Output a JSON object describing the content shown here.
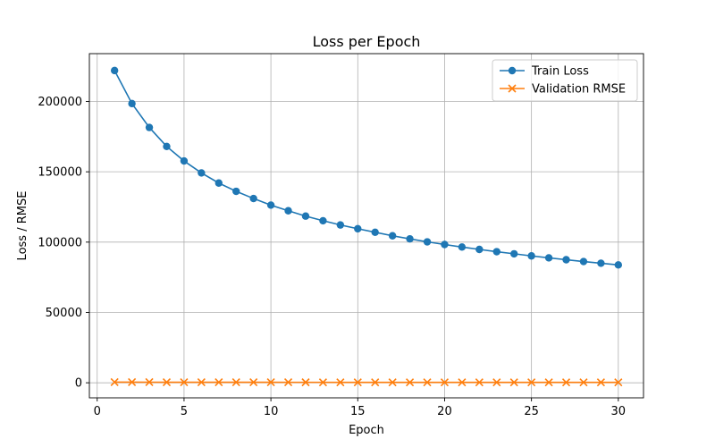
{
  "chart_data": {
    "type": "line",
    "title": "Loss per Epoch",
    "xlabel": "Epoch",
    "ylabel": "Loss / RMSE",
    "xlim": [
      -0.45,
      31.45
    ],
    "ylim": [
      -10700,
      234000
    ],
    "xticks": [
      0,
      5,
      10,
      15,
      20,
      25,
      30
    ],
    "yticks": [
      0,
      50000,
      100000,
      150000,
      200000
    ],
    "grid": true,
    "legend_position": "top-right",
    "x": [
      1,
      2,
      3,
      4,
      5,
      6,
      7,
      8,
      9,
      10,
      11,
      12,
      13,
      14,
      15,
      16,
      17,
      18,
      19,
      20,
      21,
      22,
      23,
      24,
      25,
      26,
      27,
      28,
      29,
      30
    ],
    "series": [
      {
        "name": "Train Loss",
        "color": "#1f77b4",
        "marker": "circle",
        "values": [
          222000,
          198500,
          181500,
          168000,
          157700,
          149200,
          142000,
          136100,
          131000,
          126300,
          122300,
          118500,
          115200,
          112200,
          109500,
          107000,
          104500,
          102300,
          100200,
          98300,
          96500,
          94800,
          93200,
          91700,
          90200,
          88800,
          87500,
          86200,
          85000,
          83800
        ]
      },
      {
        "name": "Validation RMSE",
        "color": "#ff7f0e",
        "marker": "x",
        "values": [
          470,
          445,
          425,
          410,
          397,
          386,
          377,
          368,
          361,
          354,
          348,
          342,
          337,
          332,
          328,
          324,
          320,
          316,
          313,
          310,
          307,
          304,
          301,
          298,
          296,
          293,
          291,
          289,
          287,
          285
        ]
      }
    ]
  }
}
